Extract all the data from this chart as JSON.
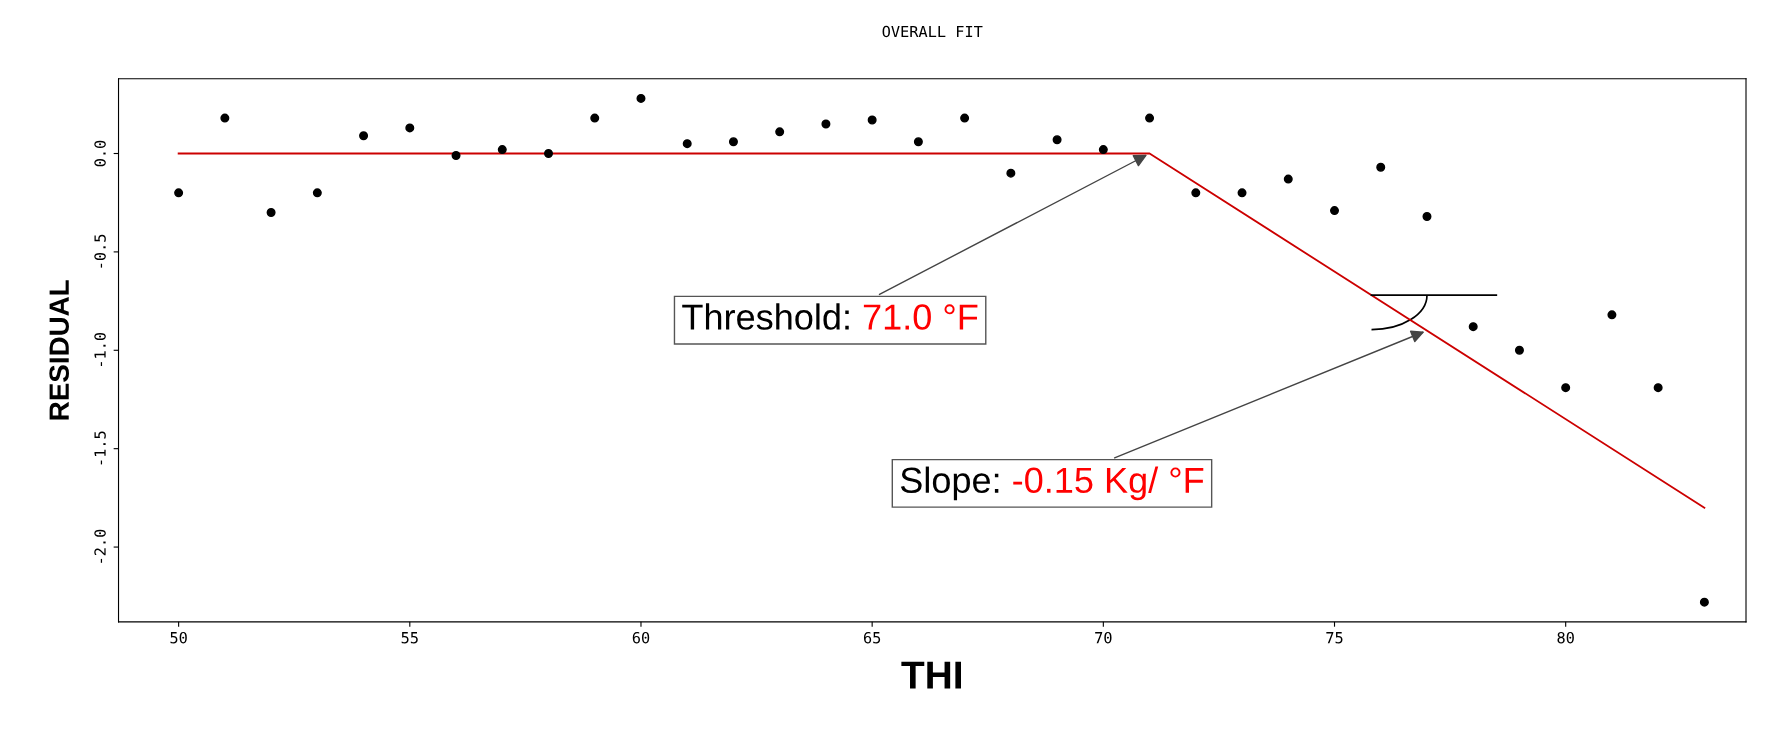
{
  "chart_data": {
    "type": "scatter",
    "title": "OVERALL FIT",
    "xlabel": "THI",
    "ylabel": "RESIDUAL",
    "x": [
      50,
      51,
      52,
      53,
      54,
      55,
      56,
      57,
      58,
      59,
      60,
      61,
      62,
      63,
      64,
      65,
      66,
      67,
      68,
      69,
      70,
      71,
      72,
      73,
      74,
      75,
      76,
      77,
      78,
      79,
      80,
      81,
      82,
      83
    ],
    "series": [
      {
        "color": "#000000",
        "marker": "circle",
        "values": [
          -0.2,
          0.18,
          -0.3,
          -0.2,
          0.09,
          0.13,
          -0.01,
          0.02,
          0.0,
          0.18,
          0.28,
          0.05,
          0.06,
          0.11,
          0.15,
          0.17,
          0.06,
          0.18,
          -0.1,
          0.07,
          0.02,
          0.18,
          -0.2,
          -0.2,
          -0.13,
          -0.29,
          -0.07,
          -0.32,
          -0.88,
          -1.0,
          -1.19,
          -0.82,
          -1.19,
          -2.28
        ]
      },
      {
        "type": "line",
        "color": "#cc0000",
        "x": [
          50,
          71,
          83
        ],
        "values": [
          0,
          0,
          -1.8
        ]
      }
    ],
    "annotations": [
      {
        "text": "Threshold: 71.0 °F",
        "x": 71,
        "y": 0
      },
      {
        "text": "Slope: -0.15 Kg/ °F",
        "x": 77,
        "y": -0.9
      }
    ],
    "grid": false,
    "legend": false,
    "xlim": [
      48.7,
      83.9
    ],
    "ylim": [
      -2.38,
      0.38
    ],
    "xticks": [
      50,
      55,
      60,
      65,
      70,
      75,
      80
    ],
    "yticks": [
      {
        "value": 0,
        "label": "0.0"
      },
      -0.5,
      {
        "value": -1,
        "label": "-1.0"
      },
      -1.5,
      {
        "value": -2,
        "label": "-2.0"
      }
    ]
  }
}
